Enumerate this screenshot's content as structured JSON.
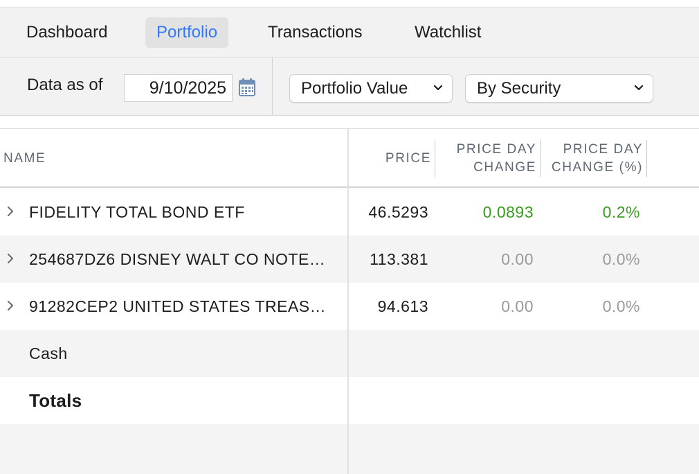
{
  "tabs": [
    {
      "label": "Dashboard"
    },
    {
      "label": "Portfolio",
      "active": true
    },
    {
      "label": "Transactions"
    },
    {
      "label": "Watchlist"
    }
  ],
  "toolbar": {
    "data_as_of_label": "Data as of",
    "date_value": "9/10/2025",
    "view_select": "Portfolio Value",
    "group_select": "By Security"
  },
  "table": {
    "headers": {
      "name": "NAME",
      "price": "PRICE",
      "price_day_change_line1": "PRICE DAY",
      "price_day_change_line2": "CHANGE",
      "price_day_change_pct_line1": "PRICE DAY",
      "price_day_change_pct_line2": "CHANGE (%)"
    },
    "rows": [
      {
        "name": "FIDELITY TOTAL BOND ETF",
        "price": "46.5293",
        "change": "0.0893",
        "change_pct": "0.2%"
      },
      {
        "name": "254687DZ6 DISNEY WALT CO NOTE…",
        "price": "113.381",
        "change": "0.00",
        "change_pct": "0.0%"
      },
      {
        "name": "91282CEP2 UNITED STATES TREAS…",
        "price": "94.613",
        "change": "0.00",
        "change_pct": "0.0%"
      }
    ],
    "cash_label": "Cash",
    "totals_label": "Totals"
  },
  "colors": {
    "accent": "#3478f6",
    "positive": "#3c9a22",
    "neutral": "#9a9a9a"
  }
}
